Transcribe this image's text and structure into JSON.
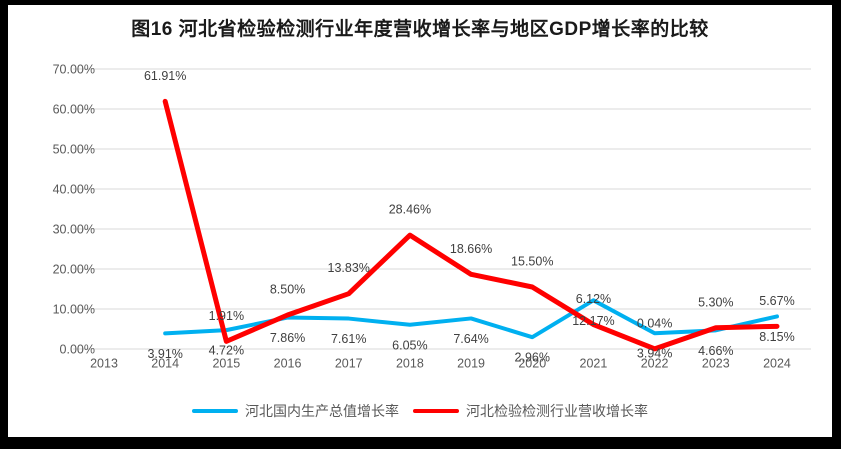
{
  "chart_data": {
    "type": "line",
    "title": "图16 河北省检验检测行业年度营收增长率与地区GDP增长率的比较",
    "categories": [
      "2013",
      "2014",
      "2015",
      "2016",
      "2017",
      "2018",
      "2019",
      "2020",
      "2021",
      "2022",
      "2023",
      "2024"
    ],
    "series": [
      {
        "name": "河北国内生产总值增长率",
        "color": "#00B0F0",
        "line_width": 4,
        "label_position": "below",
        "values": [
          null,
          3.91,
          4.72,
          7.86,
          7.61,
          6.05,
          7.64,
          2.96,
          12.17,
          3.94,
          4.66,
          8.15
        ],
        "labels": [
          null,
          "3.91%",
          "4.72%",
          "7.86%",
          "7.61%",
          "6.05%",
          "7.64%",
          "2.96%",
          "12.17%",
          "3.94%",
          "4.66%",
          "8.15%"
        ]
      },
      {
        "name": "河北检验检测行业营收增长率",
        "color": "#FF0000",
        "line_width": 5,
        "label_position": "above",
        "values": [
          null,
          61.91,
          1.91,
          8.5,
          13.83,
          28.46,
          18.66,
          15.5,
          6.12,
          0.04,
          5.3,
          5.67
        ],
        "labels": [
          null,
          "61.91%",
          "1.91%",
          "8.50%",
          "13.83%",
          "28.46%",
          "18.66%",
          "15.50%",
          "6.12%",
          "0.04%",
          "5.30%",
          "5.67%"
        ]
      }
    ],
    "y_axis": {
      "tick_labels": [
        "0.00%",
        "10.00%",
        "20.00%",
        "30.00%",
        "40.00%",
        "50.00%",
        "60.00%",
        "70.00%"
      ],
      "min": 0,
      "max": 70,
      "step": 10
    },
    "grid": true,
    "legend_position": "bottom",
    "colors": {
      "gridline": "#D9D9D9",
      "axis_text": "#595959",
      "data_label_text": "#404040",
      "title_text": "#1a1a1a",
      "background": "#FFFFFF",
      "frame": "#000000"
    }
  }
}
